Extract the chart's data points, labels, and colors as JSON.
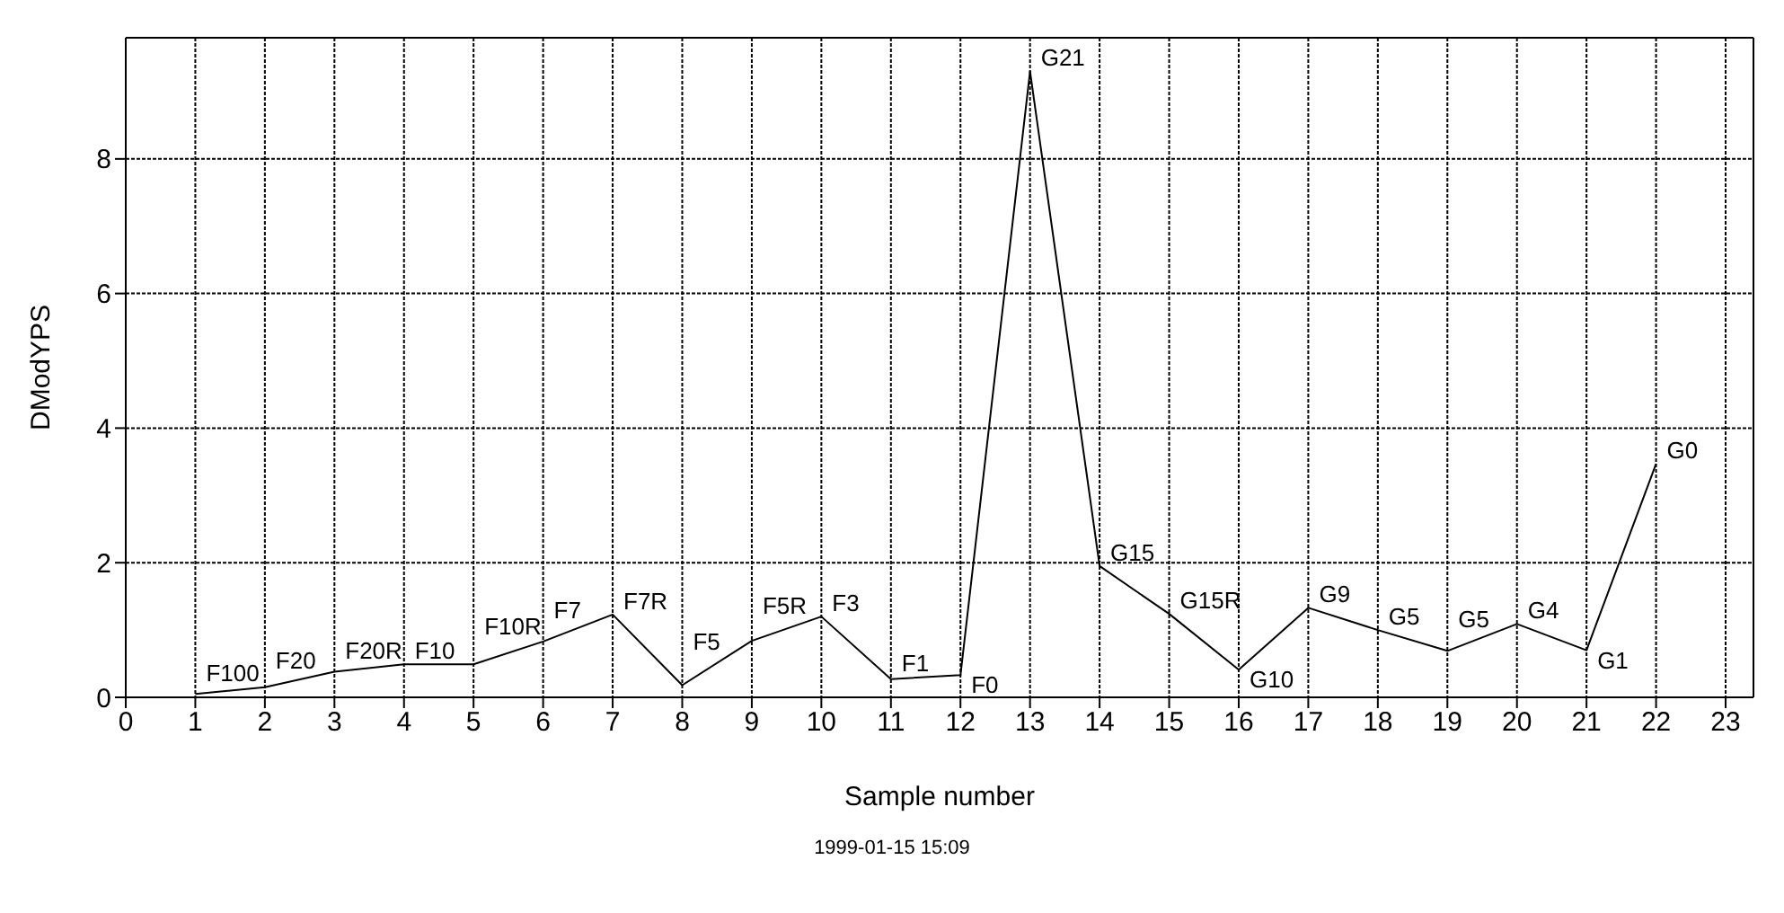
{
  "chart_data": {
    "type": "line",
    "xlabel": "Sample number",
    "ylabel": "DModYPS",
    "x": [
      1,
      2,
      3,
      4,
      5,
      6,
      7,
      8,
      9,
      10,
      11,
      12,
      13,
      14,
      15,
      16,
      17,
      18,
      19,
      20,
      21,
      22
    ],
    "series": [
      {
        "color": "#000000",
        "values": [
          0.05,
          0.15,
          0.38,
          0.49,
          0.49,
          0.83,
          1.23,
          0.18,
          0.84,
          1.2,
          0.27,
          0.33,
          9.3,
          1.95,
          1.24,
          0.41,
          1.33,
          1.0,
          0.69,
          1.09,
          0.7,
          3.47
        ]
      }
    ],
    "xlim": [
      0,
      23.4
    ],
    "xticks": [
      0,
      1,
      2,
      3,
      4,
      5,
      6,
      7,
      8,
      9,
      10,
      11,
      12,
      13,
      14,
      15,
      16,
      17,
      18,
      19,
      20,
      21,
      22,
      23
    ],
    "ylim": [
      0,
      9.8
    ],
    "yticks": [
      0,
      2,
      4,
      6,
      8
    ],
    "grid": true,
    "marker": "none",
    "line_style": "solid",
    "annotations": [
      {
        "text": "F100",
        "x": 1,
        "y": 0.05
      },
      {
        "text": "F20",
        "x": 2,
        "y": 0.15
      },
      {
        "text": "F20R",
        "x": 3,
        "y": 0.38
      },
      {
        "text": "F10",
        "x": 4,
        "y": 0.49
      },
      {
        "text": "F10R",
        "x": 5,
        "y": 0.49
      },
      {
        "text": "F7",
        "x": 6,
        "y": 0.83
      },
      {
        "text": "F7R",
        "x": 7,
        "y": 1.23
      },
      {
        "text": "F5",
        "x": 8,
        "y": 0.18
      },
      {
        "text": "F5R",
        "x": 9,
        "y": 0.84
      },
      {
        "text": "F3",
        "x": 10,
        "y": 1.2
      },
      {
        "text": "F1",
        "x": 11,
        "y": 0.27
      },
      {
        "text": "F0",
        "x": 12,
        "y": 0.33
      },
      {
        "text": "G21",
        "x": 13,
        "y": 9.3
      },
      {
        "text": "G15",
        "x": 14,
        "y": 1.95
      },
      {
        "text": "G15R",
        "x": 15,
        "y": 1.24
      },
      {
        "text": "G10",
        "x": 16,
        "y": 0.41
      },
      {
        "text": "G9",
        "x": 17,
        "y": 1.33
      },
      {
        "text": "G5",
        "x": 18,
        "y": 1.0
      },
      {
        "text": "G5",
        "x": 19,
        "y": 0.69
      },
      {
        "text": "G4",
        "x": 20,
        "y": 1.09
      },
      {
        "text": "G1",
        "x": 21,
        "y": 0.7
      },
      {
        "text": "G0",
        "x": 22,
        "y": 3.47
      },
      "1999-01-15 15:09"
    ]
  }
}
